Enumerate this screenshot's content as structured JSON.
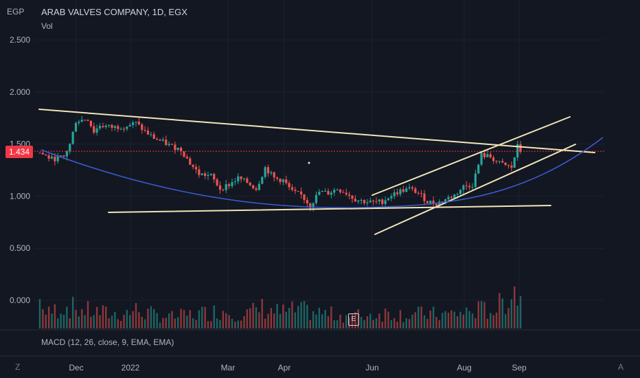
{
  "header": {
    "currency": "EGP",
    "symbol_line": "ARAB VALVES COMPANY, 1D, EGX",
    "vol_label": "Vol",
    "macd_label": "MACD (12, 26, close, 9, EMA, EMA)",
    "last_price": "1.434",
    "earnings_marker": "E",
    "corner_left": "Z",
    "corner_right": "A"
  },
  "colors": {
    "background": "#131722",
    "up": "#26a69a",
    "down": "#ef5350",
    "trendline": "#f0e6b8",
    "curve": "#3d5dd6",
    "price_line": "#f23645"
  },
  "chart_data": {
    "type": "candlestick",
    "y_axis_ticks": [
      "2.500",
      "2.000",
      "1.500",
      "1.000",
      "0.500",
      "0.000"
    ],
    "y_tick_values": [
      2.5,
      2.0,
      1.5,
      1.0,
      0.5,
      0.0
    ],
    "x_axis_ticks": [
      "Dec",
      "2022",
      "Mar",
      "Apr",
      "Jun",
      "Aug",
      "Sep"
    ],
    "last_price": 1.434,
    "price_path": [
      [
        0,
        1.42
      ],
      [
        4,
        1.36
      ],
      [
        8,
        1.38
      ],
      [
        10,
        1.5
      ],
      [
        12,
        1.72
      ],
      [
        16,
        1.74
      ],
      [
        18,
        1.62
      ],
      [
        20,
        1.68
      ],
      [
        24,
        1.66
      ],
      [
        28,
        1.67
      ],
      [
        32,
        1.7
      ],
      [
        35,
        1.62
      ],
      [
        38,
        1.56
      ],
      [
        41,
        1.52
      ],
      [
        44,
        1.48
      ],
      [
        47,
        1.45
      ],
      [
        50,
        1.32
      ],
      [
        53,
        1.22
      ],
      [
        57,
        1.2
      ],
      [
        60,
        1.08
      ],
      [
        63,
        1.12
      ],
      [
        66,
        1.18
      ],
      [
        69,
        1.14
      ],
      [
        72,
        1.08
      ],
      [
        75,
        1.28
      ],
      [
        78,
        1.18
      ],
      [
        81,
        1.16
      ],
      [
        84,
        1.05
      ],
      [
        87,
        1.02
      ],
      [
        90,
        0.92
      ],
      [
        93,
        1.05
      ],
      [
        96,
        1.04
      ],
      [
        99,
        1.08
      ],
      [
        102,
        1.04
      ],
      [
        105,
        0.98
      ],
      [
        108,
        0.96
      ],
      [
        111,
        0.95
      ],
      [
        114,
        0.96
      ],
      [
        117,
        1.02
      ],
      [
        120,
        1.06
      ],
      [
        123,
        1.08
      ],
      [
        126,
        1.04
      ],
      [
        129,
        0.96
      ],
      [
        132,
        0.94
      ],
      [
        135,
        0.98
      ],
      [
        138,
        1.02
      ],
      [
        141,
        1.1
      ],
      [
        144,
        1.12
      ],
      [
        147,
        1.4
      ],
      [
        150,
        1.38
      ],
      [
        153,
        1.32
      ],
      [
        155,
        1.3
      ],
      [
        157,
        1.28
      ],
      [
        159,
        1.48
      ],
      [
        160,
        1.434
      ]
    ],
    "volume_profile": [
      [
        2,
        0.3
      ],
      [
        8,
        0.5
      ],
      [
        14,
        0.4
      ],
      [
        20,
        0.35
      ],
      [
        26,
        0.3
      ],
      [
        32,
        0.4
      ],
      [
        38,
        0.3
      ],
      [
        44,
        0.25
      ],
      [
        50,
        0.3
      ],
      [
        56,
        0.35
      ],
      [
        62,
        0.4
      ],
      [
        68,
        0.3
      ],
      [
        74,
        0.45
      ],
      [
        80,
        0.35
      ],
      [
        86,
        0.4
      ],
      [
        92,
        0.35
      ],
      [
        98,
        0.3
      ],
      [
        104,
        0.28
      ],
      [
        110,
        0.3
      ],
      [
        116,
        0.35
      ],
      [
        122,
        0.3
      ],
      [
        128,
        0.32
      ],
      [
        134,
        0.3
      ],
      [
        140,
        0.34
      ],
      [
        146,
        0.4
      ],
      [
        152,
        0.42
      ],
      [
        158,
        0.9
      ],
      [
        160,
        0.6
      ]
    ]
  }
}
